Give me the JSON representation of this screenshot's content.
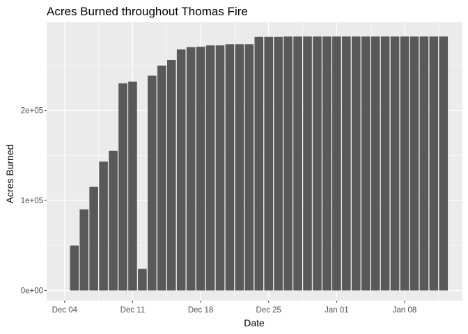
{
  "chart_data": {
    "type": "bar",
    "title": "Acres Burned throughout Thomas Fire",
    "xlabel": "Date",
    "ylabel": "Acres Burned",
    "x_unit": "date",
    "x": [
      "2017-12-05",
      "2017-12-06",
      "2017-12-07",
      "2017-12-08",
      "2017-12-09",
      "2017-12-10",
      "2017-12-11",
      "2017-12-12",
      "2017-12-13",
      "2017-12-14",
      "2017-12-15",
      "2017-12-16",
      "2017-12-17",
      "2017-12-18",
      "2017-12-19",
      "2017-12-20",
      "2017-12-21",
      "2017-12-22",
      "2017-12-23",
      "2017-12-24",
      "2017-12-25",
      "2017-12-26",
      "2017-12-27",
      "2017-12-28",
      "2017-12-29",
      "2017-12-30",
      "2017-12-31",
      "2018-01-01",
      "2018-01-02",
      "2018-01-03",
      "2018-01-04",
      "2018-01-05",
      "2018-01-06",
      "2018-01-07",
      "2018-01-08",
      "2018-01-09",
      "2018-01-10",
      "2018-01-11",
      "2018-01-12"
    ],
    "values": [
      50000,
      90000,
      115000,
      143000,
      155000,
      230000,
      231700,
      24000,
      238500,
      249500,
      256000,
      267500,
      270000,
      270500,
      272000,
      272000,
      273400,
      273400,
      273400,
      281600,
      281600,
      281600,
      281900,
      281900,
      281900,
      281900,
      281900,
      281900,
      281900,
      281900,
      281900,
      281900,
      281900,
      281900,
      281900,
      281900,
      281900,
      281900,
      281900
    ],
    "ylim": [
      0,
      300000
    ],
    "y_ticks": [
      0,
      100000,
      200000
    ],
    "y_tick_labels": [
      "0e+00",
      "1e+05",
      "2e+05"
    ],
    "x_ticks": [
      "2017-12-04",
      "2017-12-11",
      "2017-12-18",
      "2017-12-25",
      "2018-01-01",
      "2018-01-08"
    ],
    "x_tick_labels": [
      "Dec 04",
      "Dec 11",
      "Dec 18",
      "Dec 25",
      "Jan 01",
      "Jan 08"
    ],
    "grid": true,
    "colors": {
      "bar": "#595959",
      "panel_background": "#ebebeb",
      "grid_major": "#ffffff",
      "tick_label": "#4d4d4d"
    }
  }
}
